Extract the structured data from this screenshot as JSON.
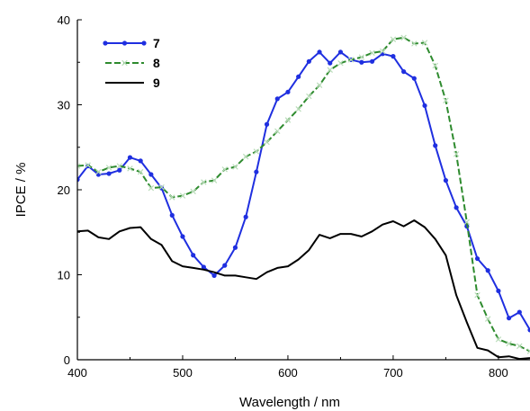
{
  "chart_data": {
    "type": "line",
    "title": "",
    "xlabel": "Wavelength / nm",
    "ylabel": "IPCE / %",
    "xlim": [
      400,
      830
    ],
    "ylim": [
      0,
      40
    ],
    "xticks": [
      400,
      500,
      600,
      700,
      800
    ],
    "yticks": [
      0,
      10,
      20,
      30,
      40
    ],
    "grid": false,
    "legend_position": "top-left",
    "series": [
      {
        "name": "7",
        "color": "#1f2fe0",
        "marker": "dot",
        "x": [
          400,
          410,
          420,
          430,
          440,
          450,
          460,
          470,
          480,
          490,
          500,
          510,
          520,
          530,
          540,
          550,
          560,
          570,
          580,
          590,
          600,
          610,
          620,
          630,
          640,
          650,
          660,
          670,
          680,
          690,
          700,
          710,
          720,
          730,
          740,
          750,
          760,
          770,
          780,
          790,
          800,
          810,
          820,
          830
        ],
        "y": [
          21.2,
          22.8,
          21.8,
          21.9,
          22.3,
          23.8,
          23.4,
          21.8,
          20.2,
          17.0,
          14.5,
          12.3,
          10.9,
          9.9,
          11.1,
          13.2,
          16.8,
          22.1,
          27.7,
          30.7,
          31.5,
          33.3,
          35.1,
          36.2,
          34.9,
          36.2,
          35.3,
          35.0,
          35.1,
          36.0,
          35.7,
          33.9,
          33.1,
          29.9,
          25.2,
          21.1,
          17.9,
          15.7,
          11.9,
          10.5,
          8.1,
          4.9,
          5.6,
          3.5
        ]
      },
      {
        "name": "8",
        "color": "#2e8b2e",
        "marker": "x",
        "x": [
          400,
          410,
          420,
          430,
          440,
          450,
          460,
          470,
          480,
          490,
          500,
          510,
          520,
          530,
          540,
          550,
          560,
          570,
          580,
          590,
          600,
          610,
          620,
          630,
          640,
          650,
          660,
          670,
          680,
          690,
          700,
          710,
          720,
          730,
          740,
          750,
          760,
          770,
          780,
          790,
          800,
          810,
          820,
          830
        ],
        "y": [
          22.8,
          22.9,
          22.1,
          22.6,
          22.8,
          22.5,
          22.1,
          20.2,
          20.3,
          19.1,
          19.3,
          19.8,
          20.9,
          21.1,
          22.4,
          22.7,
          23.9,
          24.5,
          25.6,
          26.9,
          28.2,
          29.5,
          31.0,
          32.3,
          34.1,
          34.9,
          35.3,
          35.6,
          36.1,
          36.3,
          37.7,
          37.9,
          37.2,
          37.3,
          34.6,
          30.5,
          24.2,
          16.2,
          7.6,
          4.8,
          2.4,
          1.9,
          1.6,
          1.0
        ]
      },
      {
        "name": "9",
        "color": "#000000",
        "marker": "none",
        "x": [
          400,
          410,
          420,
          430,
          440,
          450,
          460,
          470,
          480,
          490,
          500,
          510,
          520,
          530,
          540,
          550,
          560,
          570,
          580,
          590,
          600,
          610,
          620,
          630,
          640,
          650,
          660,
          670,
          680,
          690,
          700,
          710,
          720,
          730,
          740,
          750,
          760,
          770,
          780,
          790,
          800,
          810,
          820,
          830
        ],
        "y": [
          15.1,
          15.2,
          14.4,
          14.2,
          15.1,
          15.5,
          15.6,
          14.2,
          13.5,
          11.6,
          11.0,
          10.8,
          10.6,
          10.3,
          9.9,
          9.9,
          9.7,
          9.5,
          10.3,
          10.8,
          11.0,
          11.8,
          12.9,
          14.7,
          14.3,
          14.8,
          14.8,
          14.5,
          15.1,
          15.9,
          16.3,
          15.7,
          16.4,
          15.6,
          14.2,
          12.3,
          7.6,
          4.4,
          1.4,
          1.1,
          0.3,
          0.4,
          0.1,
          0.2
        ]
      }
    ]
  }
}
